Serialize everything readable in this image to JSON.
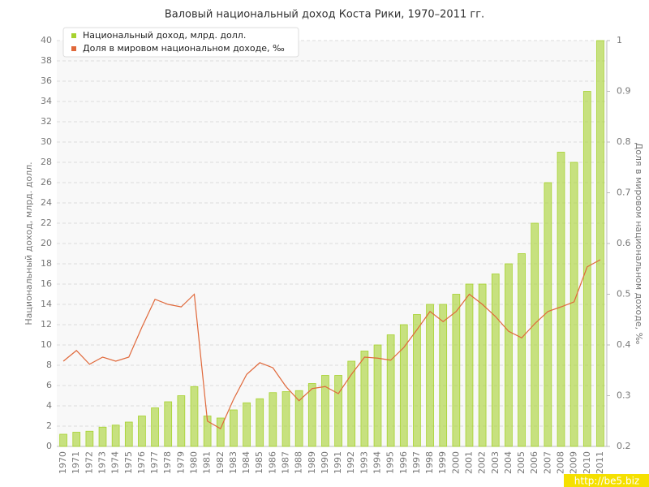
{
  "chart_data": {
    "type": "bar_line",
    "title": "Валовый национальный доход Коста Рики, 1970–2011 гг.",
    "y_label": "Национальный доход, млрд. долл.",
    "y2_label": "Доля в мировом национальном доходе, ‰",
    "watermark": "http://be5.biz",
    "categories": [
      "1970",
      "1971",
      "1972",
      "1973",
      "1974",
      "1975",
      "1976",
      "1977",
      "1978",
      "1979",
      "1980",
      "1981",
      "1982",
      "1983",
      "1984",
      "1985",
      "1986",
      "1987",
      "1988",
      "1989",
      "1990",
      "1991",
      "1992",
      "1993",
      "1994",
      "1995",
      "1996",
      "1997",
      "1998",
      "1999",
      "2000",
      "2001",
      "2002",
      "2003",
      "2004",
      "2005",
      "2006",
      "2007",
      "2008",
      "2009",
      "2010",
      "2011"
    ],
    "series": [
      {
        "name": "Национальный доход, млрд. долл.",
        "type": "bar",
        "color": "#a6d22e",
        "values": [
          1.2,
          1.4,
          1.5,
          1.9,
          2.1,
          2.4,
          3.0,
          3.8,
          4.4,
          5.0,
          5.9,
          3.0,
          2.8,
          3.6,
          4.3,
          4.7,
          5.3,
          5.4,
          5.5,
          6.2,
          7.0,
          7.0,
          8.4,
          9.4,
          10.0,
          11.0,
          12.0,
          13.0,
          14.0,
          14.0,
          15.0,
          16.0,
          16.0,
          17.0,
          18.0,
          19.0,
          22.0,
          26.0,
          29.0,
          28.0,
          35.0,
          40.0
        ]
      },
      {
        "name": "Доля в мировом национальном доходе, ‰",
        "type": "line",
        "axis": "y2",
        "color": "#e0683a",
        "values": [
          0.368,
          0.389,
          0.362,
          0.376,
          0.368,
          0.376,
          0.435,
          0.49,
          0.48,
          0.475,
          0.5,
          0.25,
          0.235,
          0.293,
          0.342,
          0.365,
          0.355,
          0.318,
          0.29,
          0.314,
          0.318,
          0.304,
          0.342,
          0.376,
          0.374,
          0.37,
          0.395,
          0.43,
          0.466,
          0.446,
          0.466,
          0.5,
          0.48,
          0.456,
          0.427,
          0.414,
          0.442,
          0.466,
          0.475,
          0.485,
          0.554,
          0.568
        ]
      }
    ],
    "ylim": [
      0,
      40
    ],
    "yticks": [
      0,
      2,
      4,
      6,
      8,
      10,
      12,
      14,
      16,
      18,
      20,
      22,
      24,
      26,
      28,
      30,
      32,
      34,
      36,
      38,
      40
    ],
    "y2lim": [
      0.2,
      1
    ],
    "y2ticks": [
      0.2,
      0.3,
      0.4,
      0.5,
      0.6,
      0.7,
      0.8,
      0.9,
      1
    ],
    "grid": true,
    "legend": "top-left"
  }
}
